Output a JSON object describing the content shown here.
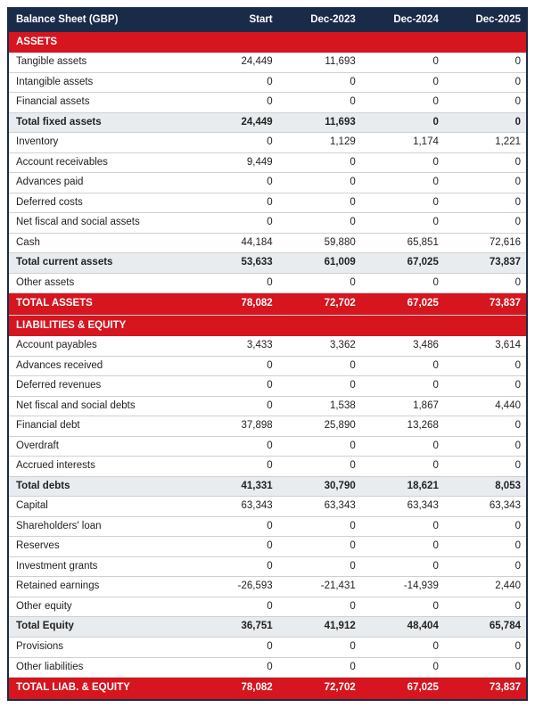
{
  "colors": {
    "header_bg": "#1a2b4a",
    "header_text": "#ffffff",
    "section_bg": "#d6151f",
    "section_text": "#ffffff",
    "subtotal_bg": "#e8ecef",
    "border": "#d0d0d0",
    "text": "#222222",
    "page_bg": "#ffffff"
  },
  "typography": {
    "base_fontsize_pt": 9,
    "font_family": "Arial"
  },
  "columns": [
    "Balance Sheet (GBP)",
    "Start",
    "Dec-2023",
    "Dec-2024",
    "Dec-2025"
  ],
  "rows": [
    {
      "kind": "section",
      "cells": [
        "ASSETS",
        "",
        "",
        "",
        ""
      ]
    },
    {
      "kind": "data",
      "cells": [
        "Tangible assets",
        "24,449",
        "11,693",
        "0",
        "0"
      ]
    },
    {
      "kind": "data",
      "cells": [
        "Intangible assets",
        "0",
        "0",
        "0",
        "0"
      ]
    },
    {
      "kind": "data",
      "cells": [
        "Financial assets",
        "0",
        "0",
        "0",
        "0"
      ]
    },
    {
      "kind": "subtotal",
      "cells": [
        "Total fixed assets",
        "24,449",
        "11,693",
        "0",
        "0"
      ]
    },
    {
      "kind": "data",
      "cells": [
        "Inventory",
        "0",
        "1,129",
        "1,174",
        "1,221"
      ]
    },
    {
      "kind": "data",
      "cells": [
        "Account receivables",
        "9,449",
        "0",
        "0",
        "0"
      ]
    },
    {
      "kind": "data",
      "cells": [
        "Advances paid",
        "0",
        "0",
        "0",
        "0"
      ]
    },
    {
      "kind": "data",
      "cells": [
        "Deferred costs",
        "0",
        "0",
        "0",
        "0"
      ]
    },
    {
      "kind": "data",
      "cells": [
        "Net fiscal and social assets",
        "0",
        "0",
        "0",
        "0"
      ]
    },
    {
      "kind": "data",
      "cells": [
        "Cash",
        "44,184",
        "59,880",
        "65,851",
        "72,616"
      ]
    },
    {
      "kind": "subtotal",
      "cells": [
        "Total current assets",
        "53,633",
        "61,009",
        "67,025",
        "73,837"
      ]
    },
    {
      "kind": "data",
      "cells": [
        "Other assets",
        "0",
        "0",
        "0",
        "0"
      ]
    },
    {
      "kind": "total",
      "cells": [
        "TOTAL ASSETS",
        "78,082",
        "72,702",
        "67,025",
        "73,837"
      ]
    },
    {
      "kind": "section",
      "cells": [
        "LIABILITIES & EQUITY",
        "",
        "",
        "",
        ""
      ]
    },
    {
      "kind": "data",
      "cells": [
        "Account payables",
        "3,433",
        "3,362",
        "3,486",
        "3,614"
      ]
    },
    {
      "kind": "data",
      "cells": [
        "Advances received",
        "0",
        "0",
        "0",
        "0"
      ]
    },
    {
      "kind": "data",
      "cells": [
        "Deferred revenues",
        "0",
        "0",
        "0",
        "0"
      ]
    },
    {
      "kind": "data",
      "cells": [
        "Net fiscal and social debts",
        "0",
        "1,538",
        "1,867",
        "4,440"
      ]
    },
    {
      "kind": "data",
      "cells": [
        "Financial debt",
        "37,898",
        "25,890",
        "13,268",
        "0"
      ]
    },
    {
      "kind": "data",
      "cells": [
        "Overdraft",
        "0",
        "0",
        "0",
        "0"
      ]
    },
    {
      "kind": "data",
      "cells": [
        "Accrued interests",
        "0",
        "0",
        "0",
        "0"
      ]
    },
    {
      "kind": "subtotal",
      "cells": [
        "Total debts",
        "41,331",
        "30,790",
        "18,621",
        "8,053"
      ]
    },
    {
      "kind": "data",
      "cells": [
        "Capital",
        "63,343",
        "63,343",
        "63,343",
        "63,343"
      ]
    },
    {
      "kind": "data",
      "cells": [
        "Shareholders' loan",
        "0",
        "0",
        "0",
        "0"
      ]
    },
    {
      "kind": "data",
      "cells": [
        "Reserves",
        "0",
        "0",
        "0",
        "0"
      ]
    },
    {
      "kind": "data",
      "cells": [
        "Investment grants",
        "0",
        "0",
        "0",
        "0"
      ]
    },
    {
      "kind": "data",
      "cells": [
        "Retained earnings",
        "-26,593",
        "-21,431",
        "-14,939",
        "2,440"
      ]
    },
    {
      "kind": "data",
      "cells": [
        "Other equity",
        "0",
        "0",
        "0",
        "0"
      ]
    },
    {
      "kind": "subtotal",
      "cells": [
        "Total Equity",
        "36,751",
        "41,912",
        "48,404",
        "65,784"
      ]
    },
    {
      "kind": "data",
      "cells": [
        "Provisions",
        "0",
        "0",
        "0",
        "0"
      ]
    },
    {
      "kind": "data",
      "cells": [
        "Other liabilities",
        "0",
        "0",
        "0",
        "0"
      ]
    },
    {
      "kind": "total",
      "cells": [
        "TOTAL LIAB. & EQUITY",
        "78,082",
        "72,702",
        "67,025",
        "73,837"
      ]
    }
  ]
}
